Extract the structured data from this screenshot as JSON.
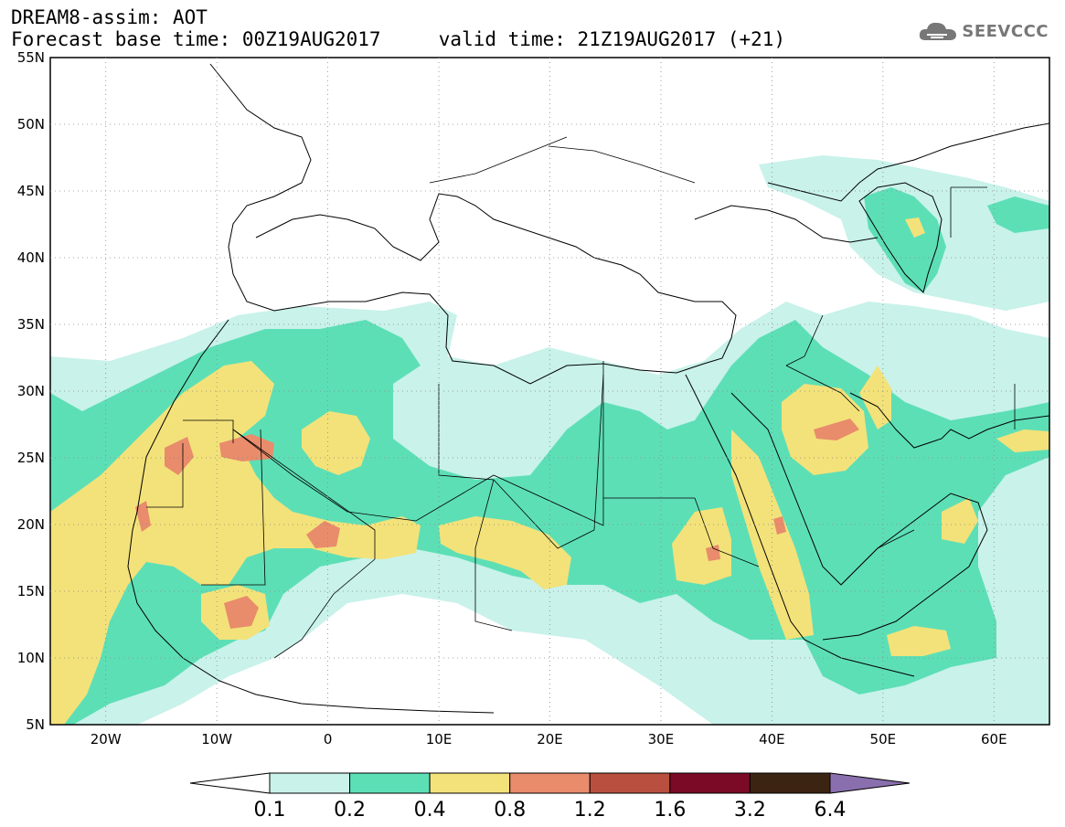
{
  "header": {
    "line1": "DREAM8-assim: AOT",
    "line2": "Forecast base time: 00Z19AUG2017     valid time: 21Z19AUG2017 (+21)"
  },
  "logo": {
    "text": "SEEVCCC",
    "icon": "cloud-icon"
  },
  "map": {
    "lon_range": [
      -25,
      65
    ],
    "lat_range": [
      5,
      55
    ],
    "lat_ticks": [
      "5N",
      "10N",
      "15N",
      "20N",
      "25N",
      "30N",
      "35N",
      "40N",
      "45N",
      "50N",
      "55N"
    ],
    "lon_ticks": [
      "20W",
      "10W",
      "0",
      "10E",
      "20E",
      "30E",
      "40E",
      "50E",
      "60E"
    ]
  },
  "colorbar": {
    "labels": [
      "0.1",
      "0.2",
      "0.4",
      "0.8",
      "1.2",
      "1.6",
      "3.2",
      "6.4"
    ],
    "colors": [
      "#ffffff",
      "#c8f2ea",
      "#5ddfb6",
      "#f3e27a",
      "#e88c6b",
      "#b9503f",
      "#7a0a26",
      "#3c2412",
      "#8a6fae"
    ]
  }
}
